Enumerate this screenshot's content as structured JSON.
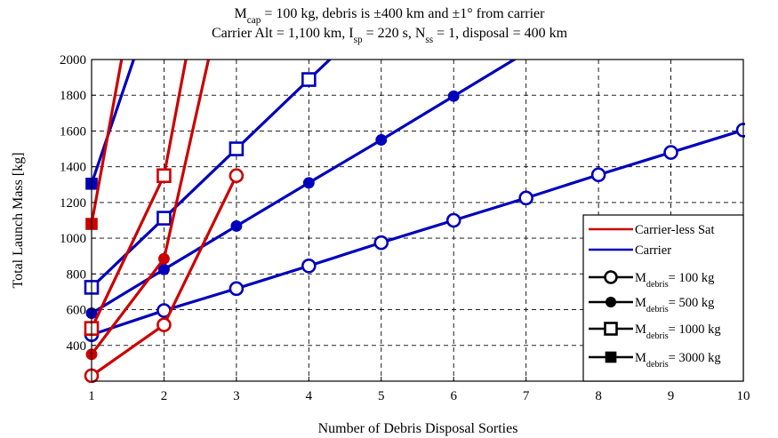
{
  "chart_data": {
    "type": "line",
    "title_lines": [
      [
        {
          "t": "M"
        },
        {
          "t": "cap",
          "sub": true
        },
        {
          "t": " = 100 kg, debris is ±400 km and ±1° from carrier"
        }
      ],
      [
        {
          "t": "Carrier Alt = 1,100 km, I"
        },
        {
          "t": "sp",
          "sub": true
        },
        {
          "t": " = 220 s, N"
        },
        {
          "t": "ss",
          "sub": true
        },
        {
          "t": " = 1, disposal = 400 km"
        }
      ]
    ],
    "xlabel": "Number of Debris Disposal Sorties",
    "ylabel": "Total Launch Mass [kg]",
    "xlim": [
      1,
      10
    ],
    "ylim": [
      200,
      2000
    ],
    "xticks": [
      1,
      2,
      3,
      4,
      5,
      6,
      7,
      8,
      9,
      10
    ],
    "yticks": [
      400,
      600,
      800,
      1000,
      1200,
      1400,
      1600,
      1800,
      2000
    ],
    "grid": true,
    "legend_position": "lower-right",
    "colors": {
      "carrier_less": "#cc0000",
      "carrier": "#0000bb"
    },
    "legend": [
      {
        "kind": "line",
        "color_key": "carrier_less",
        "label": [
          {
            "t": "Carrier-less Sat"
          }
        ]
      },
      {
        "kind": "line",
        "color_key": "carrier",
        "label": [
          {
            "t": "Carrier"
          }
        ]
      },
      {
        "kind": "marker",
        "marker": "open-circle",
        "label": [
          {
            "t": "M"
          },
          {
            "t": "debris",
            "sub": true
          },
          {
            "t": "= 100 kg"
          }
        ]
      },
      {
        "kind": "marker",
        "marker": "filled-circle",
        "label": [
          {
            "t": "M"
          },
          {
            "t": "debris",
            "sub": true
          },
          {
            "t": "= 500 kg"
          }
        ]
      },
      {
        "kind": "marker",
        "marker": "open-square",
        "label": [
          {
            "t": "M"
          },
          {
            "t": "debris",
            "sub": true
          },
          {
            "t": "= 1000 kg"
          }
        ]
      },
      {
        "kind": "marker",
        "marker": "filled-square",
        "label": [
          {
            "t": "M"
          },
          {
            "t": "debris",
            "sub": true
          },
          {
            "t": "= 3000 kg"
          }
        ]
      }
    ],
    "series": [
      {
        "group": "carrier",
        "debris_mass_kg": 100,
        "marker": "open-circle",
        "x": [
          1,
          2,
          3,
          4,
          5,
          6,
          7,
          8,
          9,
          10
        ],
        "y": [
          460,
          595,
          718,
          845,
          975,
          1100,
          1225,
          1355,
          1480,
          1605
        ]
      },
      {
        "group": "carrier",
        "debris_mass_kg": 500,
        "marker": "filled-circle",
        "x": [
          1,
          2,
          3,
          4,
          5,
          6,
          7
        ],
        "y": [
          580,
          825,
          1068,
          1310,
          1550,
          1795,
          2040
        ]
      },
      {
        "group": "carrier",
        "debris_mass_kg": 1000,
        "marker": "open-square",
        "x": [
          1,
          2,
          3,
          4,
          5
        ],
        "y": [
          725,
          1112,
          1500,
          1888,
          2275
        ]
      },
      {
        "group": "carrier",
        "debris_mass_kg": 3000,
        "marker": "filled-square",
        "x": [
          1,
          2
        ],
        "y": [
          1305,
          2500
        ]
      },
      {
        "group": "carrier_less",
        "debris_mass_kg": 100,
        "marker": "open-circle",
        "x": [
          1,
          2,
          3
        ],
        "y": [
          230,
          515,
          1350
        ]
      },
      {
        "group": "carrier_less",
        "debris_mass_kg": 500,
        "marker": "filled-circle",
        "x": [
          1,
          2,
          3
        ],
        "y": [
          350,
          885,
          2700
        ]
      },
      {
        "group": "carrier_less",
        "debris_mass_kg": 1000,
        "marker": "open-square",
        "x": [
          1,
          2,
          3
        ],
        "y": [
          495,
          1350,
          3500
        ]
      },
      {
        "group": "carrier_less",
        "debris_mass_kg": 3000,
        "marker": "filled-square",
        "x": [
          1,
          2
        ],
        "y": [
          1080,
          3300
        ]
      }
    ]
  }
}
